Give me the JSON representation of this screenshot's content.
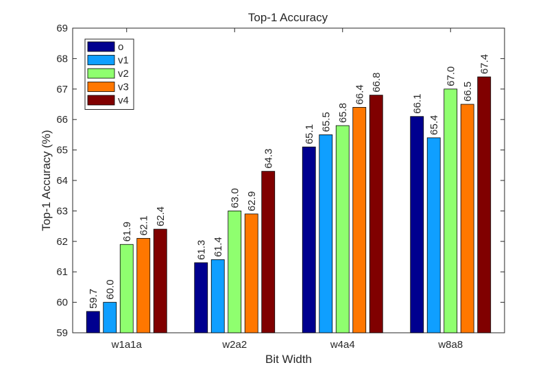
{
  "chart_data": {
    "type": "bar",
    "title": "Top-1 Accuracy",
    "xlabel": "Bit Width",
    "ylabel": "Top-1 Accuracy (%)",
    "categories": [
      "w1a1a",
      "w2a2",
      "w4a4",
      "w8a8"
    ],
    "ylim": [
      59,
      69
    ],
    "yticks": [
      59,
      60,
      61,
      62,
      63,
      64,
      65,
      66,
      67,
      68,
      69
    ],
    "grid": false,
    "legend_position": "top-left",
    "series": [
      {
        "name": "o",
        "color": "#00008f",
        "values": [
          59.7,
          61.3,
          65.1,
          66.1
        ],
        "labels": [
          "59.7",
          "61.3",
          "65.1",
          "66.1"
        ]
      },
      {
        "name": "v1",
        "color": "#0f9fff",
        "values": [
          60.0,
          61.4,
          65.5,
          65.4
        ],
        "labels": [
          "60.0",
          "61.4",
          "65.5",
          "65.4"
        ]
      },
      {
        "name": "v2",
        "color": "#8fff6f",
        "values": [
          61.9,
          63.0,
          65.8,
          67.0
        ],
        "labels": [
          "61.9",
          "63.0",
          "65.8",
          "67.0"
        ]
      },
      {
        "name": "v3",
        "color": "#ff7700",
        "values": [
          62.1,
          62.9,
          66.4,
          66.5
        ],
        "labels": [
          "62.1",
          "62.9",
          "66.4",
          "66.5"
        ]
      },
      {
        "name": "v4",
        "color": "#800000",
        "values": [
          62.4,
          64.3,
          66.8,
          67.4
        ],
        "labels": [
          "62.4",
          "64.3",
          "66.8",
          "67.4"
        ]
      }
    ]
  }
}
